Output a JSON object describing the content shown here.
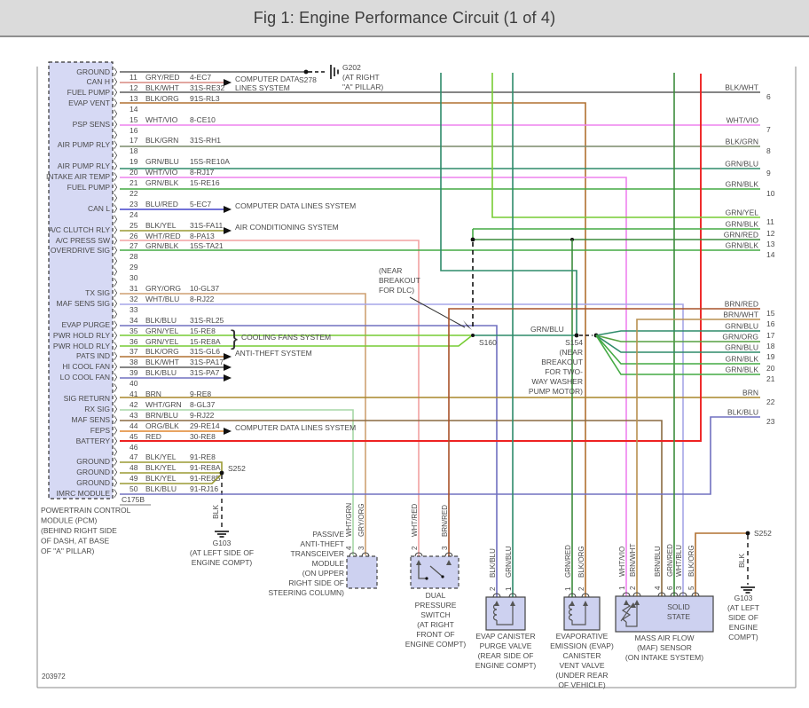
{
  "header": {
    "title": "Fig 1: Engine Performance Circuit (1 of 4)"
  },
  "footer": {
    "drawing_number": "203972"
  },
  "colors": {
    "GRY/RED": "#d98880",
    "BLK/WHT": "#5d5d5d",
    "BLK/ORG": "#b07030",
    "WHT/VIO": "#ee82ee",
    "BLK/GRN": "#7a8a6a",
    "GRN/BLU": "#2e8b6a",
    "GRN/BLK": "#44aa44",
    "BLU/RED": "#4444cc",
    "BLK/YEL": "#9a9a33",
    "WHT/RED": "#f2a2a2",
    "GRY/ORG": "#cfa172",
    "WHT/BLU": "#a6a6e8",
    "BLK/BLU": "#7070c0",
    "GRN/YEL": "#77cc33",
    "BRN": "#a8862a",
    "WHT/GRN": "#a7d7a7",
    "BRN/BLU": "#8a6a40",
    "ORG/BLK": "#e0862e",
    "RED": "#ee2222",
    "BRN/RED": "#a8522a",
    "BRN/WHT": "#b89050",
    "GRN/ORG": "#55a040",
    "GRN/RED": "#3c8c3c",
    "BLK": "#333333",
    "text": "#4a4a4a",
    "frame": "#8a8a8a",
    "dash": "#222222"
  },
  "pcm": {
    "caption": [
      "POWERTRAIN CONTROL",
      "MODULE (PCM)",
      "(BEHIND RIGHT SIDE",
      "OF DASH, AT BASE",
      "OF \"A\" PILLAR)"
    ],
    "connector": "C175B",
    "top_row": {
      "label": "GROUND",
      "color": "BLK/WHT"
    },
    "rows": [
      {
        "pin": "11",
        "label": "CAN H",
        "color": "GRY/RED",
        "circuit": "4-EC7"
      },
      {
        "pin": "12",
        "label": "FUEL PUMP",
        "color": "BLK/WHT",
        "circuit": "31S-RE32"
      },
      {
        "pin": "13",
        "label": "EVAP VENT",
        "color": "BLK/ORG",
        "circuit": "91S-RL3"
      },
      {
        "pin": "14"
      },
      {
        "pin": "15",
        "label": "PSP SENS",
        "color": "WHT/VIO",
        "circuit": "8-CE10"
      },
      {
        "pin": "16"
      },
      {
        "pin": "17",
        "label": "AIR PUMP RLY",
        "color": "BLK/GRN",
        "circuit": "31S-RH1"
      },
      {
        "pin": "18"
      },
      {
        "pin": "19",
        "label": "AIR PUMP RLY",
        "color": "GRN/BLU",
        "circuit": "15S-RE10A"
      },
      {
        "pin": "20",
        "label": "INTAKE AIR TEMP",
        "color": "WHT/VIO",
        "circuit": "8-RJ17"
      },
      {
        "pin": "21",
        "label": "FUEL PUMP",
        "color": "GRN/BLK",
        "circuit": "15-RE16"
      },
      {
        "pin": "22"
      },
      {
        "pin": "23",
        "label": "CAN L",
        "color": "BLU/RED",
        "circuit": "5-EC7"
      },
      {
        "pin": "24"
      },
      {
        "pin": "25",
        "label": "A/C CLUTCH RLY",
        "color": "BLK/YEL",
        "circuit": "31S-FA11"
      },
      {
        "pin": "26",
        "label": "A/C PRESS SW",
        "color": "WHT/RED",
        "circuit": "8-PA13"
      },
      {
        "pin": "27",
        "label": "OVERDRIVE SIG",
        "color": "GRN/BLK",
        "circuit": "15S-TA21"
      },
      {
        "pin": "28"
      },
      {
        "pin": "29"
      },
      {
        "pin": "30"
      },
      {
        "pin": "31",
        "label": "TX SIG",
        "color": "GRY/ORG",
        "circuit": "10-GL37"
      },
      {
        "pin": "32",
        "label": "MAF SENS SIG",
        "color": "WHT/BLU",
        "circuit": "8-RJ22"
      },
      {
        "pin": "33"
      },
      {
        "pin": "34",
        "label": "EVAP PURGE",
        "color": "BLK/BLU",
        "circuit": "31S-RL25"
      },
      {
        "pin": "35",
        "label": "PWR HOLD RLY",
        "color": "GRN/YEL",
        "circuit": "15-RE8"
      },
      {
        "pin": "36",
        "label": "PWR HOLD RLY",
        "color": "GRN/YEL",
        "circuit": "15-RE8A"
      },
      {
        "pin": "37",
        "label": "PATS IND",
        "color": "BLK/ORG",
        "circuit": "31S-GL6"
      },
      {
        "pin": "38",
        "label": "HI COOL FAN",
        "color": "BLK/WHT",
        "circuit": "31S-PA17"
      },
      {
        "pin": "39",
        "label": "LO COOL FAN",
        "color": "BLK/BLU",
        "circuit": "31S-PA7"
      },
      {
        "pin": "40"
      },
      {
        "pin": "41",
        "label": "SIG RETURN",
        "color": "BRN",
        "circuit": "9-RE8"
      },
      {
        "pin": "42",
        "label": "RX SIG",
        "color": "WHT/GRN",
        "circuit": "8-GL37"
      },
      {
        "pin": "43",
        "label": "MAF SENS",
        "color": "BRN/BLU",
        "circuit": "9-RJ22"
      },
      {
        "pin": "44",
        "label": "FEPS",
        "color": "ORG/BLK",
        "circuit": "29-RE14"
      },
      {
        "pin": "45",
        "label": "BATTERY",
        "color": "RED",
        "circuit": "30-RE8"
      },
      {
        "pin": "46"
      },
      {
        "pin": "47",
        "label": "GROUND",
        "color": "BLK/YEL",
        "circuit": "91-RE8"
      },
      {
        "pin": "48",
        "label": "GROUND",
        "color": "BLK/YEL",
        "circuit": "91-RE8A"
      },
      {
        "pin": "49",
        "label": "GROUND",
        "color": "BLK/YEL",
        "circuit": "91-RE8B"
      },
      {
        "pin": "50",
        "label": "IMRC MODULE",
        "color": "BLK/BLU",
        "circuit": "91-RJ16"
      }
    ]
  },
  "systems": {
    "cdl2": [
      "COMPUTER DATA",
      "LINES SYSTEM"
    ],
    "cdl": "COMPUTER DATA LINES SYSTEM",
    "ac": "AIR CONDITIONING SYSTEM",
    "theft": "ANTI-THEFT SYSTEM",
    "fans": "COOLING FANS SYSTEM"
  },
  "splices": {
    "s278": "S278",
    "g202": [
      "G202",
      "(AT RIGHT",
      "\"A\" PILLAR)"
    ],
    "near_dlc": [
      "(NEAR",
      "BREAKOUT",
      "FOR DLC)"
    ],
    "s160": "S160",
    "grn_blu_label": "GRN/BLU",
    "s154": [
      "S154",
      "(NEAR",
      "BREAKOUT",
      "FOR TWO-",
      "WAY WASHER",
      "PUMP MOTOR)"
    ],
    "s252": "S252",
    "blk": "BLK",
    "g103_left": [
      "G103",
      "(AT LEFT SIDE OF",
      "ENGINE COMPT)"
    ],
    "g103_right": [
      "G103",
      "(AT LEFT",
      "SIDE OF",
      "ENGINE",
      "COMPT)"
    ]
  },
  "right_edge": [
    {
      "num": "6",
      "label": "BLK/WHT"
    },
    {
      "num": "7",
      "label": "WHT/VIO"
    },
    {
      "num": "8",
      "label": "BLK/GRN"
    },
    {
      "num": "9",
      "label": "GRN/BLU"
    },
    {
      "num": "10",
      "label": "GRN/BLK"
    },
    {
      "num": "11",
      "label": "GRN/YEL"
    },
    {
      "num": "12",
      "label": "GRN/BLK"
    },
    {
      "num": "13",
      "label": "GRN/RED"
    },
    {
      "num": "14",
      "label": "GRN/BLK"
    },
    {
      "num": "15",
      "label": "BRN/RED"
    },
    {
      "num": "16",
      "label": "BRN/WHT"
    },
    {
      "num": "17",
      "label": "GRN/BLU"
    },
    {
      "num": "18",
      "label": "GRN/ORG"
    },
    {
      "num": "19",
      "label": "GRN/BLU"
    },
    {
      "num": "20",
      "label": "GRN/BLK"
    },
    {
      "num": "21",
      "label": "GRN/BLK"
    },
    {
      "num": "22",
      "label": "BRN"
    },
    {
      "num": "23",
      "label": "BLK/BLU"
    }
  ],
  "components": {
    "pats": {
      "caption": [
        "PASSIVE",
        "ANTI-THEFT",
        "TRANSCEIVER",
        "MODULE",
        "(ON UPPER",
        "RIGHT SIDE OF",
        "STEERING COLUMN)"
      ],
      "pins": [
        {
          "num": "4",
          "wire": "WHT/GRN"
        },
        {
          "num": "3",
          "wire": "GRY/ORG"
        }
      ]
    },
    "dps": {
      "caption": [
        "DUAL",
        "PRESSURE",
        "SWITCH",
        "(AT RIGHT",
        "FRONT OF",
        "ENGINE COMPT)"
      ],
      "pins": [
        {
          "num": "2",
          "wire": "WHT/RED"
        },
        {
          "num": "3",
          "wire": "BRN/RED"
        }
      ]
    },
    "purge": {
      "caption": [
        "EVAP CANISTER",
        "PURGE VALVE",
        "(REAR SIDE OF",
        "ENGINE COMPT)"
      ],
      "pins": [
        {
          "num": "2",
          "wire": "BLK/BLU"
        },
        {
          "num": "1",
          "wire": "GRN/BLU"
        }
      ]
    },
    "vent": {
      "caption": [
        "EVAPORATIVE",
        "EMISSION (EVAP)",
        "CANISTER",
        "VENT VALVE",
        "(UNDER REAR",
        "OF VEHICLE)"
      ],
      "pins": [
        {
          "num": "1",
          "wire": "GRN/RED"
        },
        {
          "num": "2",
          "wire": "BLK/ORG"
        }
      ]
    },
    "maf": {
      "caption": [
        "MASS AIR FLOW",
        "(MAF) SENSOR",
        "(ON INTAKE SYSTEM)"
      ],
      "inner_label": [
        "SOLID",
        "STATE"
      ],
      "pins": [
        {
          "num": "1",
          "wire": "WHT/VIO"
        },
        {
          "num": "2",
          "wire": "BRN/WHT"
        },
        {
          "num": "4",
          "wire": "BRN/BLU"
        },
        {
          "num": "6",
          "wire": "GRN/RED"
        },
        {
          "num": "3",
          "wire": "WHT/BLU"
        },
        {
          "num": "5",
          "wire": "BLK/ORG"
        }
      ]
    }
  }
}
